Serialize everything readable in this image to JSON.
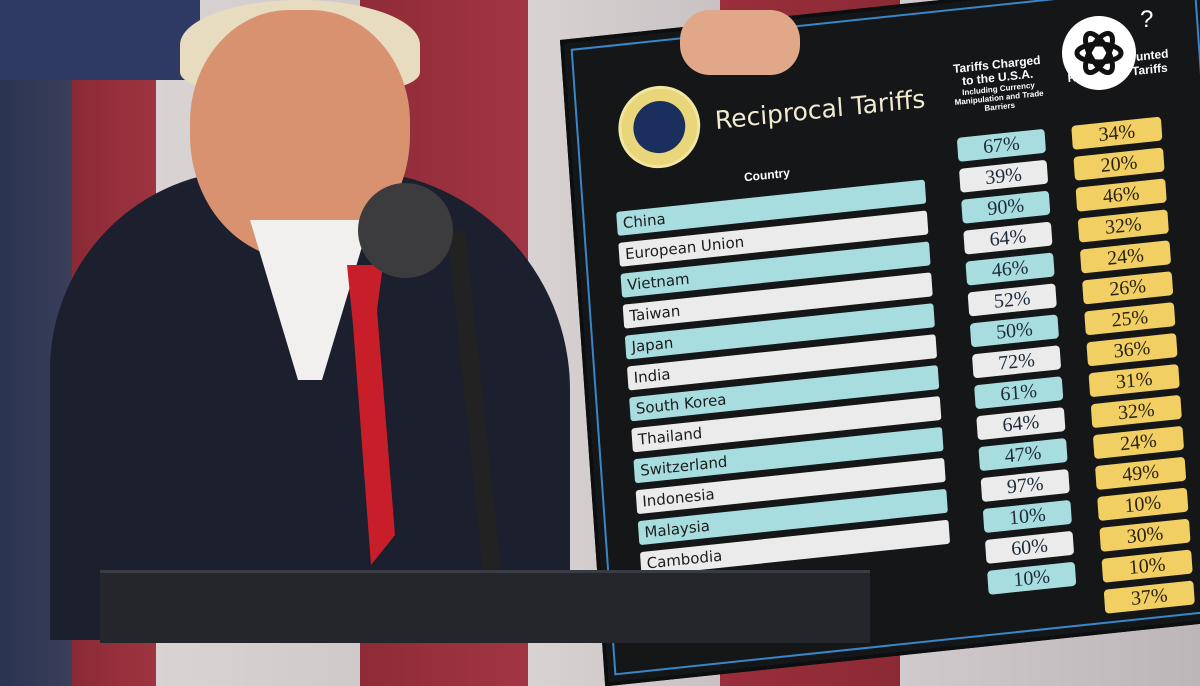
{
  "board": {
    "title": "Reciprocal Tariffs",
    "seal_text": "SEAL OF THE PRESIDENT OF THE UNITED STATES",
    "country_header": "Country",
    "tariffs_header": "Tariffs Charged to the U.S.A.",
    "tariffs_subheader": "Including Currency Manipulation and Trade Barriers",
    "discounted_header": "U.S.A. Discounted Reciprocal Tariffs",
    "rows": [
      {
        "country": "China",
        "tariff": "67%",
        "discounted": "34%"
      },
      {
        "country": "European Union",
        "tariff": "39%",
        "discounted": "20%"
      },
      {
        "country": "Vietnam",
        "tariff": "90%",
        "discounted": "46%"
      },
      {
        "country": "Taiwan",
        "tariff": "64%",
        "discounted": "32%"
      },
      {
        "country": "Japan",
        "tariff": "46%",
        "discounted": "24%"
      },
      {
        "country": "India",
        "tariff": "52%",
        "discounted": "26%"
      },
      {
        "country": "South Korea",
        "tariff": "50%",
        "discounted": "25%"
      },
      {
        "country": "Thailand",
        "tariff": "72%",
        "discounted": "36%"
      },
      {
        "country": "Switzerland",
        "tariff": "61%",
        "discounted": "31%"
      },
      {
        "country": "Indonesia",
        "tariff": "64%",
        "discounted": "32%"
      },
      {
        "country": "Malaysia",
        "tariff": "47%",
        "discounted": "24%"
      },
      {
        "country": "Cambodia",
        "tariff": "97%",
        "discounted": "49%"
      },
      {
        "country": "",
        "tariff": "10%",
        "discounted": "10%"
      },
      {
        "country": "",
        "tariff": "60%",
        "discounted": "30%"
      },
      {
        "country": "",
        "tariff": "10%",
        "discounted": "10%"
      },
      {
        "country": "",
        "tariff": "",
        "discounted": "37%"
      }
    ]
  },
  "overlay": {
    "help_label": "?",
    "logo": "openai-logo"
  },
  "colors": {
    "teal": "#a8dde0",
    "white": "#ebebeb",
    "gold": "#f1cf63",
    "board": "#141618",
    "tie": "#c81e2a"
  }
}
